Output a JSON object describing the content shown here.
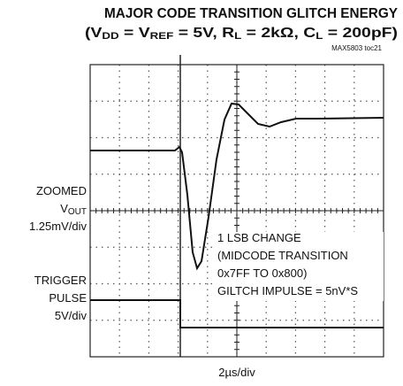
{
  "title": "MAJOR CODE TRANSITION GLITCH ENERGY",
  "subtitle": [
    "(V",
    "DD",
    " = V",
    "REF",
    " = 5V, R",
    "L",
    " = 2kΩ, C",
    "L",
    " = 200pF)"
  ],
  "figure_id": "MAX5803 toc21",
  "channel1": {
    "label1": "ZOOMED",
    "label2": [
      "V",
      "OUT"
    ],
    "scale": "1.25mV/div"
  },
  "channel2": {
    "label1": "TRIGGER",
    "label2": "PULSE",
    "scale": "5V/div"
  },
  "annotation": [
    "1 LSB CHANGE",
    "(MIDCODE TRANSITION",
    "0x7FF TO 0x800)",
    "GILTCH IMPULSE = 5nV*S"
  ],
  "time_scale": "2µs/div"
}
